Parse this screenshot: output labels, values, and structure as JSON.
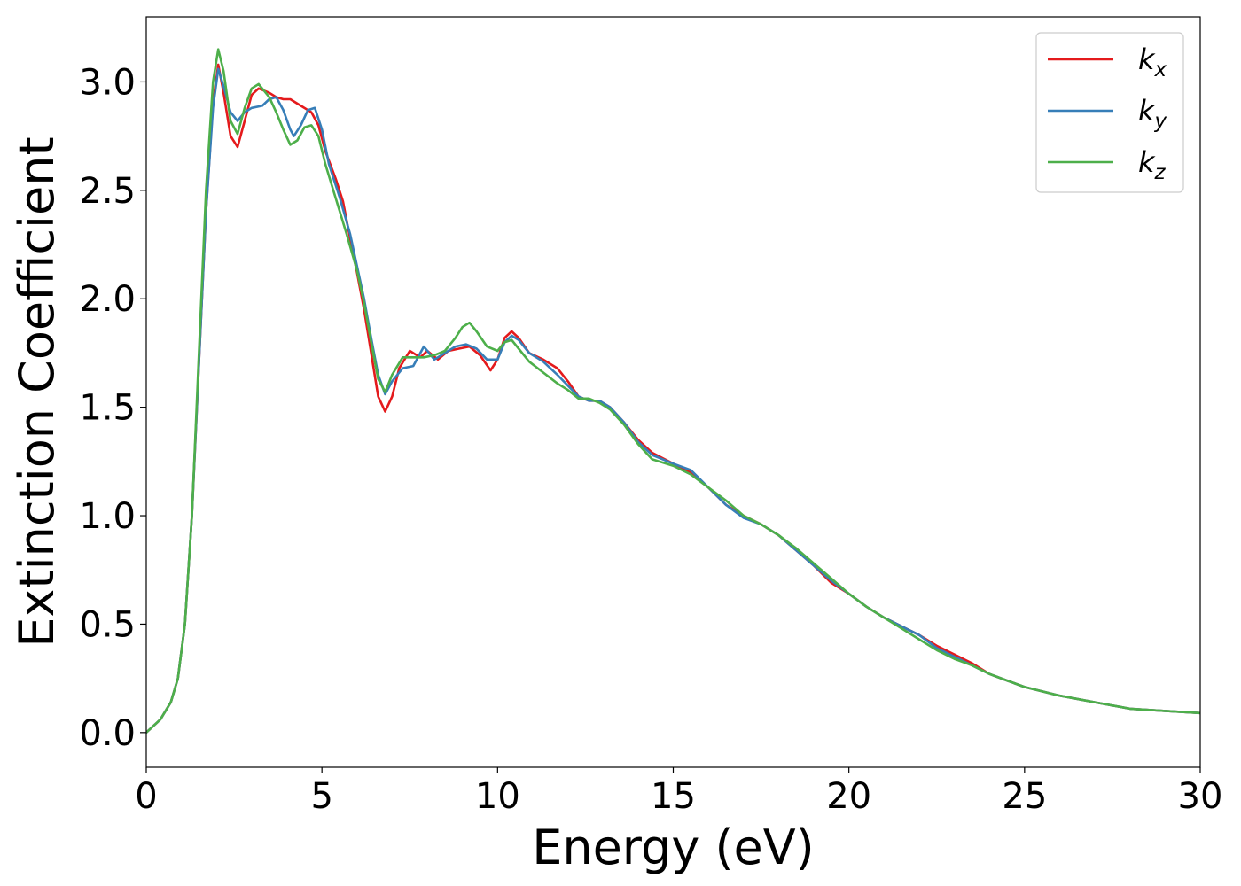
{
  "chart_data": {
    "type": "line",
    "xlabel": "Energy (eV)",
    "ylabel": "Extinction Coefficient",
    "xlim": [
      0,
      30
    ],
    "ylim": [
      -0.16,
      3.3
    ],
    "x_ticks": [
      0,
      5,
      10,
      15,
      20,
      25,
      30
    ],
    "x_tick_labels": [
      "0",
      "5",
      "10",
      "15",
      "20",
      "25",
      "30"
    ],
    "y_ticks": [
      0,
      0.5,
      1.0,
      1.5,
      2.0,
      2.5,
      3.0
    ],
    "y_tick_labels": [
      "0.0",
      "0.5",
      "1.0",
      "1.5",
      "2.0",
      "2.5",
      "3.0"
    ],
    "grid": false,
    "legend": {
      "position": "top-right",
      "entries": [
        {
          "base": "k",
          "sub": "x",
          "color": "#e41a1c"
        },
        {
          "base": "k",
          "sub": "y",
          "color": "#377eb8"
        },
        {
          "base": "k",
          "sub": "z",
          "color": "#4daf4a"
        }
      ]
    },
    "series": [
      {
        "color": "#e41a1c",
        "points": [
          [
            0,
            0
          ],
          [
            0.4,
            0.06
          ],
          [
            0.7,
            0.14
          ],
          [
            0.9,
            0.25
          ],
          [
            1.1,
            0.5
          ],
          [
            1.3,
            1.0
          ],
          [
            1.5,
            1.7
          ],
          [
            1.7,
            2.4
          ],
          [
            1.9,
            2.9
          ],
          [
            2.05,
            3.08
          ],
          [
            2.2,
            2.95
          ],
          [
            2.4,
            2.75
          ],
          [
            2.6,
            2.7
          ],
          [
            2.8,
            2.82
          ],
          [
            3.0,
            2.94
          ],
          [
            3.2,
            2.97
          ],
          [
            3.5,
            2.95
          ],
          [
            3.7,
            2.93
          ],
          [
            3.9,
            2.92
          ],
          [
            4.1,
            2.92
          ],
          [
            4.4,
            2.89
          ],
          [
            4.7,
            2.86
          ],
          [
            4.9,
            2.8
          ],
          [
            5.1,
            2.68
          ],
          [
            5.4,
            2.55
          ],
          [
            5.6,
            2.45
          ],
          [
            5.8,
            2.28
          ],
          [
            6.0,
            2.12
          ],
          [
            6.2,
            1.95
          ],
          [
            6.4,
            1.75
          ],
          [
            6.6,
            1.55
          ],
          [
            6.8,
            1.48
          ],
          [
            7.0,
            1.55
          ],
          [
            7.2,
            1.68
          ],
          [
            7.5,
            1.76
          ],
          [
            7.8,
            1.73
          ],
          [
            8.0,
            1.76
          ],
          [
            8.3,
            1.72
          ],
          [
            8.6,
            1.76
          ],
          [
            8.9,
            1.77
          ],
          [
            9.2,
            1.78
          ],
          [
            9.5,
            1.74
          ],
          [
            9.8,
            1.67
          ],
          [
            10.0,
            1.72
          ],
          [
            10.2,
            1.82
          ],
          [
            10.4,
            1.85
          ],
          [
            10.6,
            1.82
          ],
          [
            10.9,
            1.75
          ],
          [
            11.3,
            1.72
          ],
          [
            11.7,
            1.68
          ],
          [
            12.0,
            1.62
          ],
          [
            12.3,
            1.55
          ],
          [
            12.6,
            1.53
          ],
          [
            12.9,
            1.53
          ],
          [
            13.2,
            1.5
          ],
          [
            13.6,
            1.43
          ],
          [
            14.0,
            1.35
          ],
          [
            14.4,
            1.29
          ],
          [
            15.0,
            1.24
          ],
          [
            15.5,
            1.2
          ],
          [
            16.0,
            1.13
          ],
          [
            16.5,
            1.05
          ],
          [
            17.0,
            1.0
          ],
          [
            17.5,
            0.96
          ],
          [
            18.0,
            0.91
          ],
          [
            18.5,
            0.84
          ],
          [
            19.0,
            0.77
          ],
          [
            19.5,
            0.69
          ],
          [
            20.0,
            0.64
          ],
          [
            20.5,
            0.58
          ],
          [
            21.0,
            0.53
          ],
          [
            21.5,
            0.49
          ],
          [
            22.0,
            0.45
          ],
          [
            22.5,
            0.4
          ],
          [
            23.0,
            0.36
          ],
          [
            23.5,
            0.32
          ],
          [
            24.0,
            0.27
          ],
          [
            24.5,
            0.24
          ],
          [
            25.0,
            0.21
          ],
          [
            26.0,
            0.17
          ],
          [
            27.0,
            0.14
          ],
          [
            28.0,
            0.11
          ],
          [
            29.0,
            0.1
          ],
          [
            30.0,
            0.09
          ]
        ]
      },
      {
        "color": "#377eb8",
        "points": [
          [
            0,
            0
          ],
          [
            0.4,
            0.06
          ],
          [
            0.7,
            0.14
          ],
          [
            0.9,
            0.25
          ],
          [
            1.1,
            0.5
          ],
          [
            1.3,
            1.0
          ],
          [
            1.5,
            1.7
          ],
          [
            1.7,
            2.4
          ],
          [
            1.9,
            2.88
          ],
          [
            2.05,
            3.06
          ],
          [
            2.2,
            2.98
          ],
          [
            2.4,
            2.86
          ],
          [
            2.6,
            2.82
          ],
          [
            2.8,
            2.86
          ],
          [
            3.0,
            2.88
          ],
          [
            3.3,
            2.89
          ],
          [
            3.5,
            2.92
          ],
          [
            3.7,
            2.93
          ],
          [
            3.9,
            2.87
          ],
          [
            4.1,
            2.78
          ],
          [
            4.2,
            2.75
          ],
          [
            4.4,
            2.8
          ],
          [
            4.6,
            2.87
          ],
          [
            4.8,
            2.88
          ],
          [
            5.0,
            2.78
          ],
          [
            5.2,
            2.62
          ],
          [
            5.5,
            2.47
          ],
          [
            5.8,
            2.3
          ],
          [
            6.0,
            2.15
          ],
          [
            6.2,
            2.0
          ],
          [
            6.4,
            1.82
          ],
          [
            6.6,
            1.65
          ],
          [
            6.8,
            1.56
          ],
          [
            7.0,
            1.62
          ],
          [
            7.3,
            1.68
          ],
          [
            7.6,
            1.69
          ],
          [
            7.9,
            1.78
          ],
          [
            8.2,
            1.72
          ],
          [
            8.5,
            1.75
          ],
          [
            8.8,
            1.78
          ],
          [
            9.1,
            1.79
          ],
          [
            9.4,
            1.77
          ],
          [
            9.7,
            1.72
          ],
          [
            10.0,
            1.72
          ],
          [
            10.2,
            1.8
          ],
          [
            10.4,
            1.83
          ],
          [
            10.6,
            1.81
          ],
          [
            10.9,
            1.75
          ],
          [
            11.3,
            1.71
          ],
          [
            11.7,
            1.65
          ],
          [
            12.0,
            1.6
          ],
          [
            12.3,
            1.55
          ],
          [
            12.6,
            1.53
          ],
          [
            12.9,
            1.53
          ],
          [
            13.2,
            1.5
          ],
          [
            13.6,
            1.43
          ],
          [
            14.0,
            1.34
          ],
          [
            14.4,
            1.28
          ],
          [
            15.0,
            1.24
          ],
          [
            15.5,
            1.21
          ],
          [
            16.0,
            1.13
          ],
          [
            16.5,
            1.05
          ],
          [
            17.0,
            0.99
          ],
          [
            17.5,
            0.96
          ],
          [
            18.0,
            0.91
          ],
          [
            18.5,
            0.84
          ],
          [
            19.0,
            0.77
          ],
          [
            19.5,
            0.7
          ],
          [
            20.0,
            0.64
          ],
          [
            20.5,
            0.58
          ],
          [
            21.0,
            0.53
          ],
          [
            21.5,
            0.49
          ],
          [
            22.0,
            0.45
          ],
          [
            22.5,
            0.39
          ],
          [
            23.0,
            0.35
          ],
          [
            23.5,
            0.31
          ],
          [
            24.0,
            0.27
          ],
          [
            24.5,
            0.24
          ],
          [
            25.0,
            0.21
          ],
          [
            26.0,
            0.17
          ],
          [
            27.0,
            0.14
          ],
          [
            28.0,
            0.11
          ],
          [
            29.0,
            0.1
          ],
          [
            30.0,
            0.09
          ]
        ]
      },
      {
        "color": "#4daf4a",
        "points": [
          [
            0,
            0
          ],
          [
            0.4,
            0.06
          ],
          [
            0.7,
            0.14
          ],
          [
            0.9,
            0.25
          ],
          [
            1.1,
            0.5
          ],
          [
            1.3,
            1.0
          ],
          [
            1.5,
            1.75
          ],
          [
            1.7,
            2.5
          ],
          [
            1.9,
            3.0
          ],
          [
            2.05,
            3.15
          ],
          [
            2.2,
            3.05
          ],
          [
            2.4,
            2.82
          ],
          [
            2.6,
            2.76
          ],
          [
            2.8,
            2.88
          ],
          [
            3.0,
            2.97
          ],
          [
            3.2,
            2.99
          ],
          [
            3.5,
            2.93
          ],
          [
            3.7,
            2.86
          ],
          [
            3.9,
            2.78
          ],
          [
            4.1,
            2.71
          ],
          [
            4.3,
            2.73
          ],
          [
            4.5,
            2.79
          ],
          [
            4.7,
            2.8
          ],
          [
            4.9,
            2.75
          ],
          [
            5.1,
            2.62
          ],
          [
            5.4,
            2.46
          ],
          [
            5.7,
            2.3
          ],
          [
            6.0,
            2.13
          ],
          [
            6.2,
            1.98
          ],
          [
            6.4,
            1.8
          ],
          [
            6.6,
            1.63
          ],
          [
            6.8,
            1.57
          ],
          [
            7.0,
            1.65
          ],
          [
            7.3,
            1.73
          ],
          [
            7.6,
            1.73
          ],
          [
            7.9,
            1.73
          ],
          [
            8.2,
            1.74
          ],
          [
            8.5,
            1.76
          ],
          [
            8.8,
            1.82
          ],
          [
            9.0,
            1.87
          ],
          [
            9.2,
            1.89
          ],
          [
            9.4,
            1.85
          ],
          [
            9.7,
            1.78
          ],
          [
            10.0,
            1.76
          ],
          [
            10.2,
            1.8
          ],
          [
            10.4,
            1.81
          ],
          [
            10.6,
            1.77
          ],
          [
            10.9,
            1.71
          ],
          [
            11.3,
            1.66
          ],
          [
            11.7,
            1.61
          ],
          [
            12.0,
            1.58
          ],
          [
            12.3,
            1.54
          ],
          [
            12.6,
            1.54
          ],
          [
            12.9,
            1.52
          ],
          [
            13.2,
            1.49
          ],
          [
            13.6,
            1.42
          ],
          [
            14.0,
            1.33
          ],
          [
            14.4,
            1.26
          ],
          [
            15.0,
            1.23
          ],
          [
            15.5,
            1.19
          ],
          [
            16.0,
            1.13
          ],
          [
            16.5,
            1.07
          ],
          [
            17.0,
            1.0
          ],
          [
            17.5,
            0.96
          ],
          [
            18.0,
            0.91
          ],
          [
            18.5,
            0.85
          ],
          [
            19.0,
            0.78
          ],
          [
            19.5,
            0.71
          ],
          [
            20.0,
            0.64
          ],
          [
            20.5,
            0.58
          ],
          [
            21.0,
            0.53
          ],
          [
            21.5,
            0.48
          ],
          [
            22.0,
            0.43
          ],
          [
            22.5,
            0.38
          ],
          [
            23.0,
            0.34
          ],
          [
            23.5,
            0.31
          ],
          [
            24.0,
            0.27
          ],
          [
            24.5,
            0.24
          ],
          [
            25.0,
            0.21
          ],
          [
            26.0,
            0.17
          ],
          [
            27.0,
            0.14
          ],
          [
            28.0,
            0.11
          ],
          [
            29.0,
            0.1
          ],
          [
            30.0,
            0.09
          ]
        ]
      }
    ]
  }
}
